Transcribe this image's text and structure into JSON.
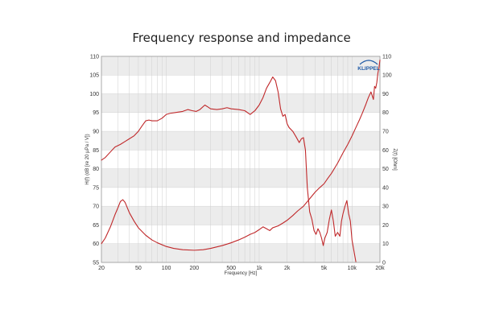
{
  "chart_data": {
    "type": "line",
    "title": "Frequency response and impedance",
    "xlabel": "Frequency [Hz]",
    "ylabel": "H(f) (dB [re 20 µPa / V])",
    "y2label": "Z(f) [Ohm]",
    "x_scale": "log",
    "xlim": [
      20,
      20000
    ],
    "ylim": [
      55,
      110
    ],
    "y2lim": [
      0,
      110
    ],
    "x_ticks": [
      "20",
      "50",
      "100",
      "200",
      "500",
      "1k",
      "2k",
      "5k",
      "10k",
      "20k"
    ],
    "x_tick_values": [
      20,
      50,
      100,
      200,
      500,
      1000,
      2000,
      5000,
      10000,
      20000
    ],
    "y_ticks": [
      55,
      60,
      65,
      70,
      75,
      80,
      85,
      90,
      95,
      100,
      105,
      110
    ],
    "y2_ticks": [
      0,
      10,
      20,
      30,
      40,
      50,
      60,
      70,
      80,
      90,
      100,
      110
    ],
    "grid": true,
    "logo_text": "KLIPPEL",
    "line_color": "#c0282a",
    "series": [
      {
        "axis": "left",
        "points": [
          [
            20,
            82.3
          ],
          [
            22,
            83.0
          ],
          [
            25,
            84.5
          ],
          [
            28,
            85.8
          ],
          [
            32,
            86.5
          ],
          [
            36,
            87.3
          ],
          [
            40,
            88.0
          ],
          [
            45,
            88.8
          ],
          [
            50,
            90.0
          ],
          [
            55,
            91.5
          ],
          [
            60,
            92.8
          ],
          [
            65,
            93.0
          ],
          [
            70,
            92.8
          ],
          [
            80,
            92.8
          ],
          [
            90,
            93.5
          ],
          [
            100,
            94.5
          ],
          [
            110,
            94.8
          ],
          [
            125,
            95.0
          ],
          [
            150,
            95.3
          ],
          [
            170,
            95.8
          ],
          [
            190,
            95.5
          ],
          [
            210,
            95.3
          ],
          [
            230,
            95.8
          ],
          [
            260,
            97.0
          ],
          [
            280,
            96.5
          ],
          [
            300,
            96.0
          ],
          [
            350,
            95.8
          ],
          [
            400,
            96.0
          ],
          [
            450,
            96.3
          ],
          [
            500,
            96.0
          ],
          [
            600,
            95.8
          ],
          [
            700,
            95.5
          ],
          [
            800,
            94.5
          ],
          [
            900,
            95.5
          ],
          [
            1000,
            97.0
          ],
          [
            1100,
            99.0
          ],
          [
            1200,
            101.5
          ],
          [
            1300,
            103.0
          ],
          [
            1400,
            104.5
          ],
          [
            1500,
            103.5
          ],
          [
            1600,
            100.5
          ],
          [
            1700,
            96.0
          ],
          [
            1800,
            94.0
          ],
          [
            1900,
            94.5
          ],
          [
            2000,
            92.0
          ],
          [
            2100,
            91.0
          ],
          [
            2300,
            90.0
          ],
          [
            2500,
            88.5
          ],
          [
            2700,
            87.0
          ],
          [
            2850,
            88.0
          ],
          [
            3000,
            88.3
          ],
          [
            3150,
            85.0
          ],
          [
            3300,
            75.0
          ],
          [
            3500,
            68.5
          ],
          [
            3700,
            66.5
          ],
          [
            3900,
            63.5
          ],
          [
            4100,
            62.5
          ],
          [
            4300,
            64.0
          ],
          [
            4500,
            63.0
          ],
          [
            4700,
            61.5
          ],
          [
            4900,
            59.5
          ],
          [
            5100,
            61.5
          ],
          [
            5400,
            63.0
          ],
          [
            5700,
            66.5
          ],
          [
            6000,
            69.0
          ],
          [
            6300,
            66.0
          ],
          [
            6600,
            62.0
          ],
          [
            7000,
            63.0
          ],
          [
            7400,
            62.0
          ],
          [
            7700,
            66.0
          ],
          [
            8000,
            68.0
          ],
          [
            8400,
            70.0
          ],
          [
            8800,
            71.5
          ],
          [
            9200,
            68.0
          ],
          [
            9600,
            66.0
          ],
          [
            10000,
            61.0
          ],
          [
            10500,
            58.0
          ],
          [
            11000,
            55.2
          ]
        ]
      },
      {
        "axis": "right",
        "points": [
          [
            20,
            10.0
          ],
          [
            22,
            13.0
          ],
          [
            25,
            19.0
          ],
          [
            28,
            25.5
          ],
          [
            30,
            29.0
          ],
          [
            32,
            32.5
          ],
          [
            34,
            33.5
          ],
          [
            36,
            32.0
          ],
          [
            40,
            26.5
          ],
          [
            45,
            22.0
          ],
          [
            50,
            18.5
          ],
          [
            60,
            14.5
          ],
          [
            70,
            12.0
          ],
          [
            80,
            10.5
          ],
          [
            100,
            8.5
          ],
          [
            120,
            7.5
          ],
          [
            150,
            6.8
          ],
          [
            200,
            6.5
          ],
          [
            250,
            6.8
          ],
          [
            300,
            7.5
          ],
          [
            400,
            9.0
          ],
          [
            500,
            10.5
          ],
          [
            600,
            12.0
          ],
          [
            700,
            13.5
          ],
          [
            800,
            15.0
          ],
          [
            900,
            16.0
          ],
          [
            1000,
            17.5
          ],
          [
            1100,
            19.0
          ],
          [
            1200,
            18.0
          ],
          [
            1300,
            17.0
          ],
          [
            1400,
            18.5
          ],
          [
            1600,
            19.5
          ],
          [
            1800,
            21.0
          ],
          [
            2000,
            22.5
          ],
          [
            2300,
            25.0
          ],
          [
            2600,
            27.5
          ],
          [
            3000,
            30.0
          ],
          [
            3500,
            34.0
          ],
          [
            4000,
            37.5
          ],
          [
            4500,
            40.0
          ],
          [
            5000,
            42.0
          ],
          [
            5500,
            45.0
          ],
          [
            6000,
            47.5
          ],
          [
            7000,
            53.0
          ],
          [
            8000,
            58.5
          ],
          [
            9000,
            63.0
          ],
          [
            10000,
            67.5
          ],
          [
            11000,
            72.0
          ],
          [
            12000,
            76.0
          ],
          [
            13000,
            80.0
          ],
          [
            14000,
            84.0
          ],
          [
            15000,
            88.0
          ],
          [
            16000,
            91.0
          ],
          [
            16500,
            89.0
          ],
          [
            17000,
            87.0
          ],
          [
            17500,
            94.0
          ],
          [
            18000,
            93.0
          ],
          [
            18500,
            96.0
          ],
          [
            19000,
            101.0
          ],
          [
            19500,
            104.0
          ],
          [
            20000,
            108.0
          ]
        ]
      }
    ]
  }
}
